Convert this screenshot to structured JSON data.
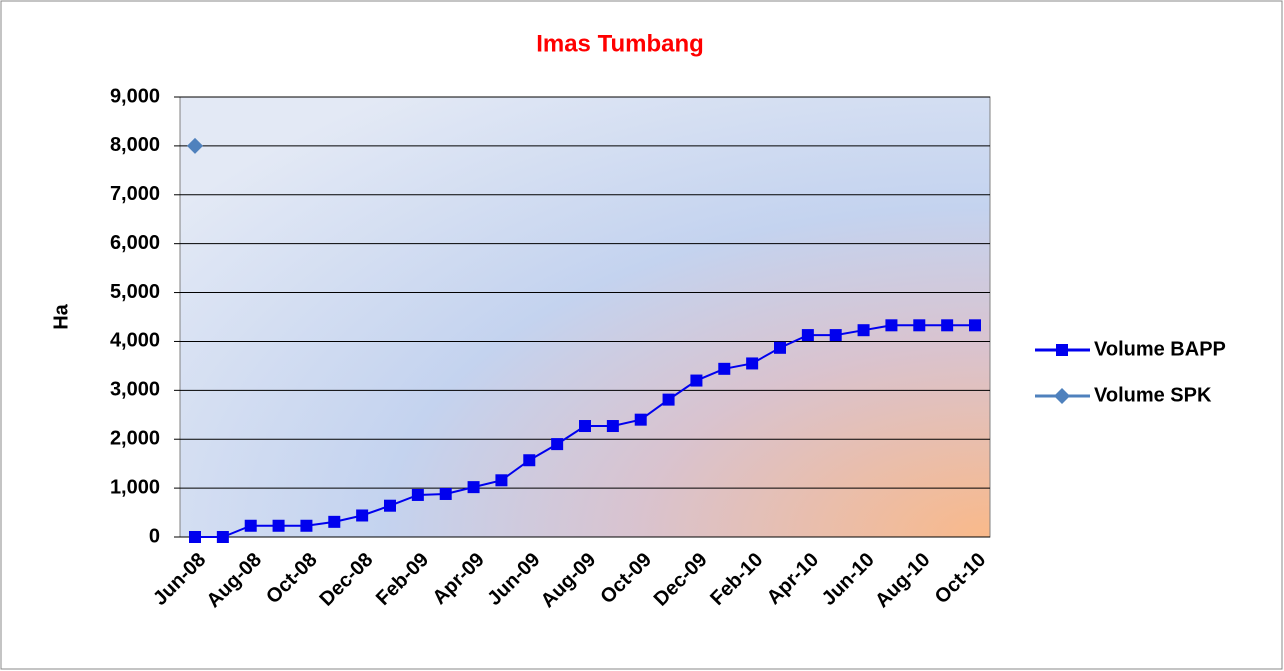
{
  "chart_data": {
    "type": "line",
    "title": "Imas Tumbang",
    "y_label": "Ha",
    "categories": [
      "Jun-08",
      null,
      "Aug-08",
      null,
      "Oct-08",
      null,
      "Dec-08",
      null,
      "Feb-09",
      null,
      "Apr-09",
      null,
      "Jun-09",
      null,
      "Aug-09",
      null,
      "Oct-09",
      null,
      "Dec-09",
      null,
      "Feb-10",
      null,
      "Apr-10",
      null,
      "Jun-10",
      null,
      "Aug-10",
      null,
      "Oct-10"
    ],
    "series": [
      {
        "name": "Volume BAPP",
        "color": "#0000ee",
        "marker": "square",
        "values": [
          0,
          0,
          230,
          230,
          230,
          310,
          440,
          640,
          860,
          880,
          1020,
          1160,
          1570,
          1900,
          2270,
          2270,
          2400,
          2810,
          3200,
          3440,
          3550,
          3870,
          4130,
          4130,
          4230,
          4330,
          4330,
          4330,
          4330
        ]
      },
      {
        "name": "Volume SPK",
        "color": "#4f81bd",
        "marker": "diamond",
        "values": [
          8000,
          null,
          null,
          null,
          null,
          null,
          null,
          null,
          null,
          null,
          null,
          null,
          null,
          null,
          null,
          null,
          null,
          null,
          null,
          null,
          null,
          null,
          null,
          null,
          null,
          null,
          null,
          null,
          null
        ]
      }
    ],
    "ylim": [
      0,
      9000
    ],
    "yticks": [
      0,
      {
        "value": 1000,
        "label": "1,000"
      },
      {
        "value": 2000,
        "label": "2,000"
      },
      {
        "value": 3000,
        "label": "3,000"
      },
      {
        "value": 4000,
        "label": "4,000"
      },
      {
        "value": 5000,
        "label": "5,000"
      },
      {
        "value": 6000,
        "label": "6,000"
      },
      {
        "value": 7000,
        "label": "7,000"
      },
      {
        "value": 8000,
        "label": "8,000"
      },
      {
        "value": 9000,
        "label": "9,000"
      }
    ],
    "grid": true,
    "legend": "right"
  }
}
